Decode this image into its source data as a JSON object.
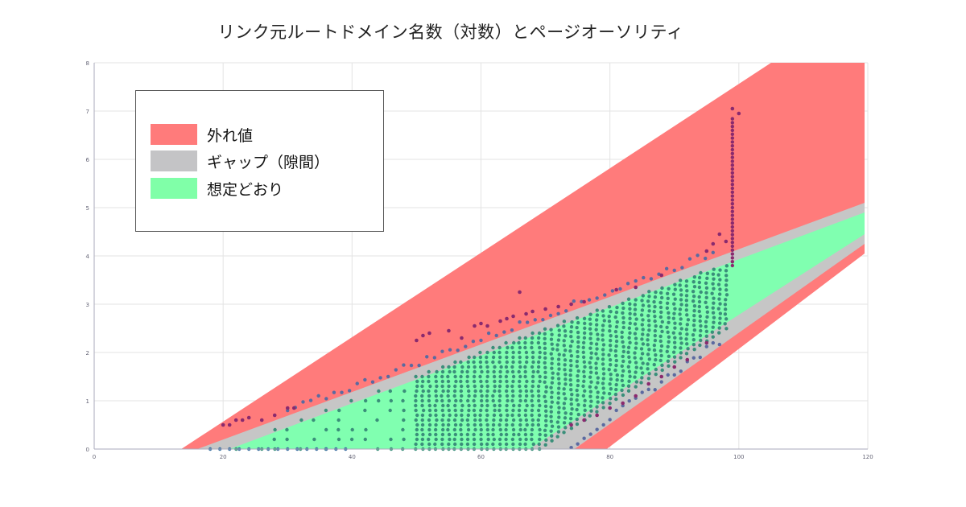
{
  "chart_data": {
    "type": "scatter",
    "title": "リンク元ルートドメイン名数（対数）とページオーソリティ",
    "xlabel": "",
    "ylabel": "",
    "xlim": [
      0,
      120
    ],
    "ylim": [
      0,
      8
    ],
    "x_ticks": [
      "0",
      "20",
      "40",
      "60",
      "80",
      "100",
      "120"
    ],
    "y_ticks": [
      "0",
      "1",
      "2",
      "3",
      "4",
      "5",
      "6",
      "7",
      "8"
    ],
    "grid": true,
    "legend_position": "top-left",
    "bands": [
      {
        "name": "外れ値",
        "color": "#ff7b7b",
        "polygon": [
          [
            13.5,
            0
          ],
          [
            105,
            8
          ],
          [
            119.5,
            8
          ],
          [
            119.5,
            4.05
          ],
          [
            79.5,
            0
          ]
        ]
      },
      {
        "name": "ギャップ（隙間）",
        "color": "#c6c6c6",
        "polygon": [
          [
            16,
            0
          ],
          [
            119.5,
            5.1
          ],
          [
            119.5,
            4.25
          ],
          [
            74.5,
            0
          ]
        ]
      },
      {
        "name": "想定どおり",
        "color": "#80ffb0",
        "polygon": [
          [
            21,
            0
          ],
          [
            119.5,
            4.9
          ],
          [
            119.5,
            4.45
          ],
          [
            67.5,
            0
          ]
        ]
      }
    ],
    "legend": [
      {
        "name": "外れ値",
        "color": "#ff7b7b"
      },
      {
        "name": "ギャップ（隙間）",
        "color": "#c4c4c6"
      },
      {
        "name": "想定どおり",
        "color": "#80ffa8"
      }
    ],
    "points_note": "dense vertical columns of integer PA values; upper outliers up to 7.05 at x≈99",
    "outlier_points": [
      [
        20,
        0.5
      ],
      [
        21,
        0.5
      ],
      [
        22,
        0.6
      ],
      [
        23,
        0.6
      ],
      [
        24,
        0.65
      ],
      [
        26,
        0.6
      ],
      [
        28,
        0.7
      ],
      [
        30,
        0.85
      ],
      [
        31,
        0.85
      ],
      [
        50,
        2.25
      ],
      [
        51,
        2.35
      ],
      [
        52,
        2.4
      ],
      [
        55,
        2.45
      ],
      [
        57,
        2.3
      ],
      [
        59,
        2.55
      ],
      [
        60,
        2.6
      ],
      [
        61,
        2.55
      ],
      [
        63,
        2.65
      ],
      [
        64,
        2.7
      ],
      [
        65,
        2.75
      ],
      [
        66,
        3.25
      ],
      [
        67,
        2.8
      ],
      [
        68,
        2.85
      ],
      [
        70,
        2.9
      ],
      [
        72,
        2.95
      ],
      [
        74,
        3.0
      ],
      [
        76,
        3.05
      ],
      [
        81,
        3.3
      ],
      [
        84,
        3.35
      ],
      [
        88,
        3.6
      ],
      [
        95,
        4.1
      ],
      [
        96,
        4.25
      ],
      [
        97,
        4.45
      ],
      [
        98,
        4.3
      ],
      [
        99,
        7.05
      ],
      [
        100,
        6.95
      ],
      [
        74,
        0.5
      ],
      [
        76,
        0.6
      ],
      [
        78,
        0.7
      ],
      [
        80,
        0.85
      ],
      [
        82,
        0.95
      ],
      [
        84,
        1.1
      ],
      [
        86,
        1.35
      ],
      [
        88,
        1.5
      ],
      [
        90,
        1.7
      ],
      [
        92,
        1.85
      ],
      [
        95,
        2.2
      ]
    ]
  }
}
